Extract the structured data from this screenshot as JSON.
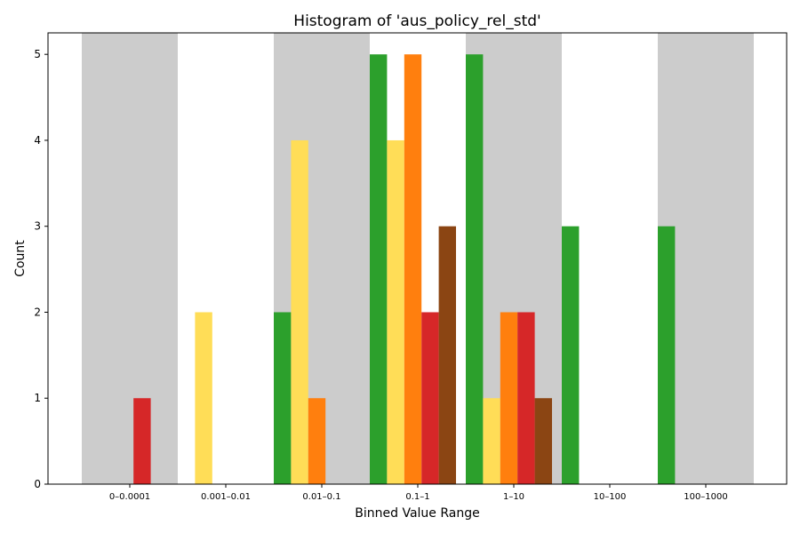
{
  "chart_data": {
    "type": "bar",
    "title": "Histogram of 'aus_policy_rel_std'",
    "xlabel": "Binned Value Range",
    "ylabel": "Count",
    "categories": [
      "0–0.0001",
      "0.001–0.01",
      "0.01–0.1",
      "0.1–1",
      "1–10",
      "10–100",
      "100–1000"
    ],
    "ylim": [
      0,
      5.25
    ],
    "yticks": [
      0,
      1,
      2,
      3,
      4,
      5
    ],
    "grid": false,
    "legend": "none",
    "background_bands": {
      "color": "#cccccc",
      "category_indices": [
        0,
        2,
        4,
        6
      ]
    },
    "series": [
      {
        "color": "#2ca02c",
        "values": [
          0,
          0,
          2,
          5,
          5,
          3,
          3
        ]
      },
      {
        "color": "#ffdd57",
        "values": [
          0,
          2,
          4,
          4,
          1,
          0,
          0
        ]
      },
      {
        "color": "#ff7f0e",
        "values": [
          0,
          0,
          1,
          5,
          2,
          0,
          0
        ]
      },
      {
        "color": "#d62728",
        "values": [
          1,
          0,
          0,
          2,
          2,
          0,
          0
        ]
      },
      {
        "color": "#8b4513",
        "values": [
          0,
          0,
          0,
          3,
          1,
          0,
          0
        ]
      }
    ]
  }
}
